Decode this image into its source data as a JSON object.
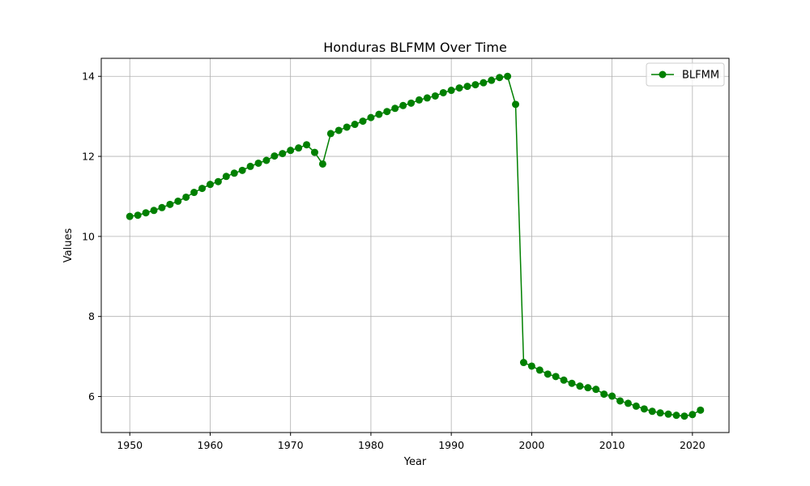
{
  "chart_data": {
    "type": "line",
    "title": "Honduras BLFMM Over Time",
    "xlabel": "Year",
    "ylabel": "Values",
    "xlim": [
      1946.45,
      2024.55
    ],
    "ylim": [
      5.1,
      14.45
    ],
    "xticks": [
      1950,
      1960,
      1970,
      1980,
      1990,
      2000,
      2010,
      2020
    ],
    "yticks": [
      6,
      8,
      10,
      12,
      14
    ],
    "grid": true,
    "legend_position": "top-right",
    "color": "#008000",
    "series": [
      {
        "name": "BLFMM",
        "x": [
          1950,
          1951,
          1952,
          1953,
          1954,
          1955,
          1956,
          1957,
          1958,
          1959,
          1960,
          1961,
          1962,
          1963,
          1964,
          1965,
          1966,
          1967,
          1968,
          1969,
          1970,
          1971,
          1972,
          1973,
          1974,
          1975,
          1976,
          1977,
          1978,
          1979,
          1980,
          1981,
          1982,
          1983,
          1984,
          1985,
          1986,
          1987,
          1988,
          1989,
          1990,
          1991,
          1992,
          1993,
          1994,
          1995,
          1996,
          1997,
          1998,
          1999,
          2000,
          2001,
          2002,
          2003,
          2004,
          2005,
          2006,
          2007,
          2008,
          2009,
          2010,
          2011,
          2012,
          2013,
          2014,
          2015,
          2016,
          2017,
          2018,
          2019,
          2020,
          2021
        ],
        "values": [
          10.5,
          10.53,
          10.59,
          10.65,
          10.72,
          10.8,
          10.88,
          10.98,
          11.1,
          11.2,
          11.3,
          11.37,
          11.5,
          11.58,
          11.65,
          11.75,
          11.83,
          11.9,
          12.01,
          12.07,
          12.15,
          12.21,
          12.29,
          12.1,
          11.81,
          12.57,
          12.65,
          12.73,
          12.8,
          12.88,
          12.97,
          13.05,
          13.12,
          13.2,
          13.27,
          13.33,
          13.41,
          13.46,
          13.51,
          13.59,
          13.65,
          13.71,
          13.75,
          13.79,
          13.84,
          13.9,
          13.97,
          14.0,
          13.3,
          6.85,
          6.76,
          6.66,
          6.56,
          6.5,
          6.41,
          6.33,
          6.26,
          6.22,
          6.18,
          6.06,
          6.01,
          5.89,
          5.83,
          5.76,
          5.69,
          5.63,
          5.59,
          5.56,
          5.53,
          5.51,
          5.55,
          5.66
        ]
      }
    ]
  }
}
